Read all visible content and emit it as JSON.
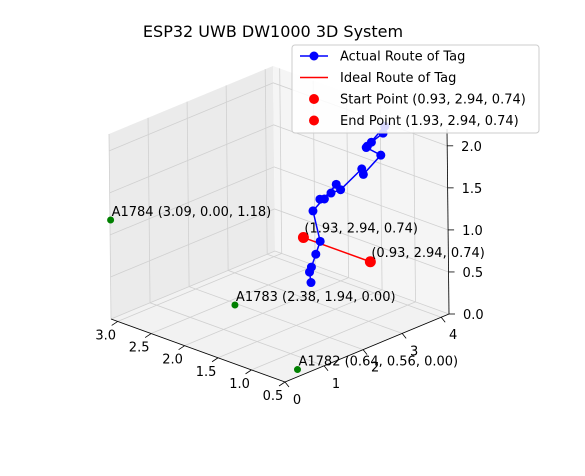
{
  "chart_data": {
    "type": "scatter",
    "projection": "3d",
    "title": "ESP32 UWB DW1000 3D System",
    "xlabel": "",
    "ylabel": "",
    "zlabel": "",
    "xlim": [
      0.5,
      3.1
    ],
    "ylim": [
      0,
      4.2
    ],
    "zlim": [
      0,
      2.2
    ],
    "x_ticks": [
      "0.5",
      "1.0",
      "1.5",
      "2.0",
      "2.5",
      "3.0"
    ],
    "y_ticks": [
      "0",
      "1",
      "2",
      "3",
      "4"
    ],
    "z_ticks": [
      "0.0",
      "0.5",
      "1.0",
      "1.5",
      "2.0"
    ],
    "grid": true,
    "legend_position": "top-right",
    "legend": [
      {
        "label": "Actual Route of Tag",
        "color": "#0000ff",
        "kind": "line-marker"
      },
      {
        "label": "Ideal Route of Tag",
        "color": "#ff0000",
        "kind": "line"
      },
      {
        "label": "Start Point (0.93, 2.94, 0.74)",
        "color": "#ff0000",
        "kind": "marker"
      },
      {
        "label": "End Point (1.93, 2.94, 0.74)",
        "color": "#ff0000",
        "kind": "marker"
      }
    ],
    "series": [
      {
        "name": "Actual Route of Tag",
        "color": "#0000ff",
        "points": [
          [
            0.93,
            3.0,
            2.15
          ],
          [
            0.93,
            3.3,
            2.2
          ],
          [
            1.05,
            3.55,
            2.2
          ],
          [
            1.05,
            3.1,
            2.05
          ],
          [
            0.95,
            2.9,
            2.1
          ],
          [
            0.85,
            3.1,
            2.0
          ],
          [
            1.35,
            3.5,
            1.55
          ],
          [
            1.55,
            3.8,
            1.5
          ],
          [
            1.4,
            3.0,
            1.45
          ],
          [
            1.25,
            2.5,
            1.55
          ],
          [
            1.3,
            2.3,
            1.5
          ],
          [
            1.35,
            2.5,
            1.45
          ],
          [
            1.7,
            3.4,
            1.35
          ],
          [
            1.7,
            2.8,
            1.15
          ],
          [
            1.95,
            3.4,
            0.6
          ],
          [
            1.9,
            3.2,
            0.5
          ],
          [
            1.85,
            3.0,
            0.4
          ],
          [
            1.85,
            2.95,
            0.35
          ],
          [
            1.8,
            2.9,
            0.25
          ]
        ]
      },
      {
        "name": "Ideal Route of Tag",
        "color": "#ff0000",
        "points": [
          [
            0.93,
            2.94,
            0.74
          ],
          [
            1.93,
            2.94,
            0.74
          ]
        ]
      }
    ],
    "start_point": {
      "x": 0.93,
      "y": 2.94,
      "z": 0.74,
      "label": "(0.93, 2.94, 0.74)",
      "color": "#ff0000"
    },
    "end_point": {
      "x": 1.93,
      "y": 2.94,
      "z": 0.74,
      "label": "(1.93, 2.94, 0.74)",
      "color": "#ff0000"
    },
    "anchors": [
      {
        "x": 0.64,
        "y": 0.56,
        "z": 0.0,
        "label": "A1782 (0.64, 0.56, 0.00)",
        "color": "#008000"
      },
      {
        "x": 2.38,
        "y": 1.94,
        "z": 0.0,
        "label": "A1783 (2.38, 1.94, 0.00)",
        "color": "#008000"
      },
      {
        "x": 3.09,
        "y": 0.0,
        "z": 1.18,
        "label": "A1784 (3.09, 0.00, 1.18)",
        "color": "#008000"
      }
    ]
  }
}
